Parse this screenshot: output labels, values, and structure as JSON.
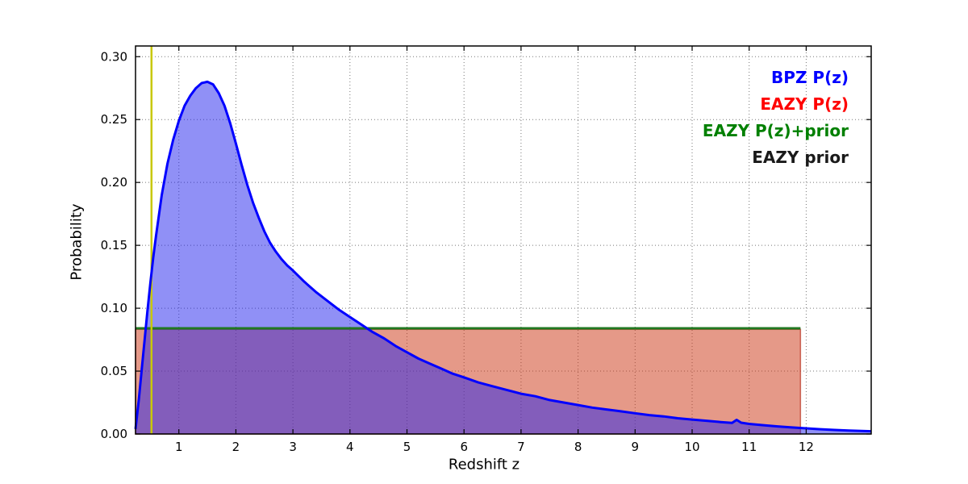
{
  "chart_data": {
    "type": "line",
    "title": "",
    "xlabel": "Redshift z",
    "ylabel": "Probability",
    "xlim": [
      0.24,
      13.14
    ],
    "ylim": [
      0,
      0.3085
    ],
    "xticks": [
      1,
      2,
      3,
      4,
      5,
      6,
      7,
      8,
      9,
      10,
      11,
      12
    ],
    "yticks": [
      0.0,
      0.05,
      0.1,
      0.15,
      0.2,
      0.25,
      0.3
    ],
    "grid": "dotted",
    "grid_color": "#777777",
    "legend": {
      "position": "top-right",
      "entries": [
        {
          "label": "BPZ P(z)",
          "color": "#0000ff"
        },
        {
          "label": "EAZY P(z)",
          "color": "#ff0000"
        },
        {
          "label": "EAZY P(z)+prior",
          "color": "#008000"
        },
        {
          "label": "EAZY prior",
          "color": "#1a1a1a"
        }
      ]
    },
    "series": [
      {
        "name": "BPZ P(z)",
        "type": "line-filled",
        "color": "#0000ff",
        "fill": "#2222ee",
        "fill_opacity": 0.5,
        "line_width": 3,
        "points": [
          [
            0.24,
            0.004
          ],
          [
            0.3,
            0.028
          ],
          [
            0.35,
            0.052
          ],
          [
            0.4,
            0.075
          ],
          [
            0.45,
            0.098
          ],
          [
            0.5,
            0.12
          ],
          [
            0.55,
            0.14
          ],
          [
            0.6,
            0.158
          ],
          [
            0.7,
            0.19
          ],
          [
            0.8,
            0.215
          ],
          [
            0.9,
            0.234
          ],
          [
            1.0,
            0.249
          ],
          [
            1.1,
            0.261
          ],
          [
            1.2,
            0.269
          ],
          [
            1.3,
            0.275
          ],
          [
            1.4,
            0.279
          ],
          [
            1.5,
            0.28
          ],
          [
            1.6,
            0.278
          ],
          [
            1.7,
            0.271
          ],
          [
            1.8,
            0.261
          ],
          [
            1.9,
            0.247
          ],
          [
            2.0,
            0.231
          ],
          [
            2.1,
            0.214
          ],
          [
            2.2,
            0.198
          ],
          [
            2.3,
            0.184
          ],
          [
            2.4,
            0.172
          ],
          [
            2.5,
            0.161
          ],
          [
            2.6,
            0.152
          ],
          [
            2.7,
            0.145
          ],
          [
            2.8,
            0.139
          ],
          [
            2.9,
            0.134
          ],
          [
            3.0,
            0.13
          ],
          [
            3.2,
            0.121
          ],
          [
            3.4,
            0.113
          ],
          [
            3.6,
            0.106
          ],
          [
            3.8,
            0.099
          ],
          [
            4.0,
            0.093
          ],
          [
            4.2,
            0.087
          ],
          [
            4.4,
            0.081
          ],
          [
            4.6,
            0.076
          ],
          [
            4.8,
            0.07
          ],
          [
            5.0,
            0.065
          ],
          [
            5.2,
            0.06
          ],
          [
            5.4,
            0.056
          ],
          [
            5.6,
            0.052
          ],
          [
            5.8,
            0.048
          ],
          [
            6.0,
            0.045
          ],
          [
            6.25,
            0.041
          ],
          [
            6.5,
            0.038
          ],
          [
            6.75,
            0.035
          ],
          [
            7.0,
            0.032
          ],
          [
            7.25,
            0.03
          ],
          [
            7.5,
            0.027
          ],
          [
            7.75,
            0.025
          ],
          [
            8.0,
            0.023
          ],
          [
            8.25,
            0.021
          ],
          [
            8.5,
            0.0195
          ],
          [
            8.75,
            0.018
          ],
          [
            9.0,
            0.0165
          ],
          [
            9.25,
            0.015
          ],
          [
            9.5,
            0.014
          ],
          [
            9.75,
            0.0125
          ],
          [
            10.0,
            0.0115
          ],
          [
            10.25,
            0.0105
          ],
          [
            10.5,
            0.0095
          ],
          [
            10.7,
            0.0088
          ],
          [
            10.78,
            0.0112
          ],
          [
            10.86,
            0.009
          ],
          [
            11.0,
            0.008
          ],
          [
            11.25,
            0.007
          ],
          [
            11.5,
            0.006
          ],
          [
            11.75,
            0.0052
          ],
          [
            12.0,
            0.0045
          ],
          [
            12.25,
            0.0038
          ],
          [
            12.5,
            0.0032
          ],
          [
            12.75,
            0.0027
          ],
          [
            13.14,
            0.0022
          ]
        ]
      },
      {
        "name": "EAZY P(z)",
        "type": "filled-rect",
        "color": "#bb3322",
        "fill": "#cc3311",
        "fill_opacity": 0.5,
        "x_start": 0.24,
        "x_end": 11.9,
        "height": 0.0832
      },
      {
        "name": "EAZY P(z)+prior",
        "type": "hline",
        "color": "#217821",
        "line_width": 3,
        "x_start": 0.24,
        "x_end": 11.9,
        "y": 0.084
      },
      {
        "name": "EAZY prior",
        "type": "vline",
        "color": "#c8c800",
        "line_width": 2.5,
        "x": 0.52
      }
    ]
  }
}
